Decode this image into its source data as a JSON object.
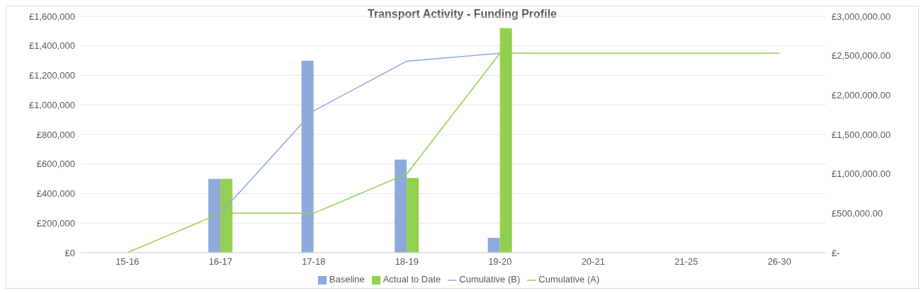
{
  "chart_data": {
    "type": "bar",
    "title": "Transport Activity - Funding Profile",
    "categories": [
      "15-16",
      "16-17",
      "17-18",
      "18-19",
      "19-20",
      "20-21",
      "21-25",
      "26-30"
    ],
    "series": [
      {
        "name": "Baseline",
        "color": "#8eaadb",
        "values": [
          0,
          500000,
          1300000,
          630000,
          100000,
          0,
          0,
          0
        ]
      },
      {
        "name": "Actual to Date",
        "color": "#92d050",
        "values": [
          0,
          500000,
          0,
          505000,
          1520000,
          0,
          0,
          0
        ]
      },
      {
        "name": "Cumulative (B)",
        "type": "line",
        "axis": "y2",
        "color": "#8eaadb",
        "values": [
          null,
          500000,
          1800000,
          2430000,
          2530000,
          null,
          null,
          null
        ]
      },
      {
        "name": "Cumulative (A)",
        "type": "line",
        "axis": "y2",
        "color": "#92d050",
        "values": [
          0,
          500000,
          500000,
          1000000,
          2530000,
          2530000,
          2530000,
          2530000
        ]
      }
    ],
    "ylim": [
      0,
      1600000
    ],
    "yticks": [
      {
        "value": 0,
        "label": "£0"
      },
      {
        "value": 200000,
        "label": "£200,000"
      },
      {
        "value": 400000,
        "label": "£400,000"
      },
      {
        "value": 600000,
        "label": "£600,000"
      },
      {
        "value": 800000,
        "label": "£800,000"
      },
      {
        "value": 1000000,
        "label": "£1,000,000"
      },
      {
        "value": 1200000,
        "label": "£1,200,000"
      },
      {
        "value": 1400000,
        "label": "£1,400,000"
      },
      {
        "value": 1600000,
        "label": "£1,600,000"
      }
    ],
    "y2lim": [
      0,
      3000000
    ],
    "y2ticks": [
      {
        "value": 0,
        "label": "£-"
      },
      {
        "value": 500000,
        "label": "£500,000.00"
      },
      {
        "value": 1000000,
        "label": "£1,000,000.00"
      },
      {
        "value": 1500000,
        "label": "£1,500,000.00"
      },
      {
        "value": 2000000,
        "label": "£2,000,000.00"
      },
      {
        "value": 2500000,
        "label": "£2,500,000.00"
      },
      {
        "value": 3000000,
        "label": "£3,000,000.00"
      }
    ],
    "grid": "y",
    "legend": "bottom",
    "marker": "none",
    "line_style": "solid"
  }
}
